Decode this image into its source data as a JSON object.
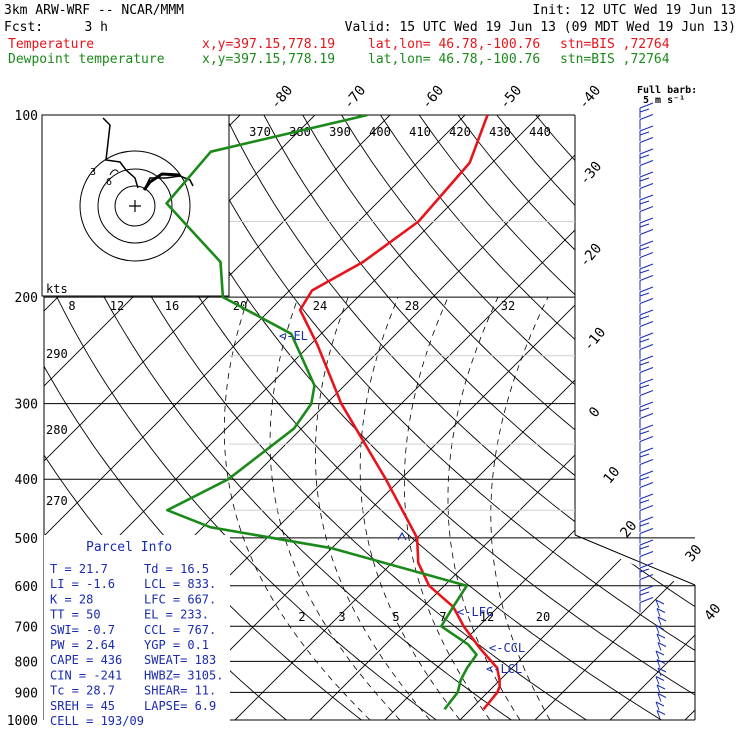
{
  "header": {
    "model": "3km ARW-WRF -- NCAR/MMM",
    "init": "Init: 12 UTC Wed 19 Jun 13",
    "fcst_label": "Fcst:",
    "fcst_value": "3 h",
    "valid": "Valid: 15 UTC Wed 19 Jun 13 (09 MDT Wed 19 Jun 13)",
    "legend": [
      {
        "name": "Temperature",
        "color": "#e8141b",
        "xy": "x,y=397.15,778.19",
        "latlon": "lat,lon= 46.78,-100.76",
        "stn": "stn=BIS ,72764"
      },
      {
        "name": "Dewpoint temperature",
        "color": "#1b8a1b",
        "xy": "x,y=397.15,778.19",
        "latlon": "lat,lon= 46.78,-100.76",
        "stn": "stn=BIS ,72764"
      }
    ]
  },
  "wind_legend": {
    "title": "Full barb:",
    "value": "5 m s⁻¹"
  },
  "chart_data": {
    "type": "skew-t",
    "pressure_levels": [
      100,
      200,
      300,
      400,
      500,
      600,
      700,
      800,
      900,
      1000
    ],
    "isotherm_labels": [
      "-80",
      "-70",
      "-60",
      "-50",
      "-40",
      "-30",
      "-20",
      "-10",
      "0",
      "10",
      "20",
      "30",
      "40"
    ],
    "theta_e_labels": [
      "370",
      "380",
      "390",
      "400",
      "410",
      "420",
      "430",
      "440"
    ],
    "mixing_ratio_labels": [
      "8",
      "12",
      "16",
      "20",
      "24",
      "28",
      "32"
    ],
    "lower_mixing_labels": [
      "2",
      "3",
      "5",
      "7",
      "12",
      "20"
    ],
    "left_labels": [
      "290",
      "280",
      "270"
    ],
    "kts_label": "kts",
    "levels": [
      {
        "label": "<-EL"
      },
      {
        "label": "<-LFC"
      },
      {
        "label": "<-CCL"
      },
      {
        "label": "<-LCL"
      }
    ],
    "series": [
      {
        "name": "Temperature",
        "color": "#e8141b",
        "points": [
          [
            100,
            -57
          ],
          [
            120,
            -53
          ],
          [
            150,
            -52
          ],
          [
            175,
            -54
          ],
          [
            195,
            -57
          ],
          [
            210,
            -56
          ],
          [
            240,
            -49
          ],
          [
            300,
            -38
          ],
          [
            400,
            -22
          ],
          [
            500,
            -10
          ],
          [
            550,
            -6.5
          ],
          [
            600,
            -2
          ],
          [
            650,
            4
          ],
          [
            700,
            8
          ],
          [
            760,
            13
          ],
          [
            820,
            18
          ],
          [
            860,
            20
          ],
          [
            880,
            20.8
          ],
          [
            900,
            21.3
          ],
          [
            960,
            21.7
          ]
        ]
      },
      {
        "name": "Dewpoint temperature",
        "color": "#1b8a1b",
        "points": [
          [
            100,
            -73
          ],
          [
            115,
            -89
          ],
          [
            140,
            -88
          ],
          [
            175,
            -73
          ],
          [
            200,
            -68
          ],
          [
            230,
            -54
          ],
          [
            280,
            -44
          ],
          [
            300,
            -42
          ],
          [
            330,
            -41
          ],
          [
            400,
            -43
          ],
          [
            450,
            -47
          ],
          [
            480,
            -39
          ],
          [
            520,
            -20
          ],
          [
            600,
            3
          ],
          [
            650,
            4
          ],
          [
            700,
            5
          ],
          [
            750,
            11
          ],
          [
            780,
            13.5
          ],
          [
            820,
            14
          ],
          [
            860,
            14.8
          ],
          [
            900,
            16
          ],
          [
            960,
            16.5
          ]
        ]
      }
    ],
    "parcel_info": {
      "title": "Parcel Info",
      "rows": [
        [
          "T  =   21.7",
          "Td =  16.5"
        ],
        [
          "LI =   -1.6",
          "LCL =  833."
        ],
        [
          "K  =     28",
          "LFC =  667."
        ],
        [
          "TT =     50",
          "EL  =  233."
        ],
        [
          "SWI=   -0.7",
          "CCL =  767."
        ],
        [
          "PW =   2.64",
          "YGP =   0.1"
        ],
        [
          "CAPE =  436",
          "SWEAT=  183"
        ],
        [
          "CIN =  -241",
          "HWBZ= 3105."
        ],
        [
          "Tc =   28.7",
          "SHEAR=  11."
        ],
        [
          "SREH =   45",
          "LAPSE=  6.9"
        ],
        [
          "CELL = 193/09",
          ""
        ]
      ]
    }
  }
}
